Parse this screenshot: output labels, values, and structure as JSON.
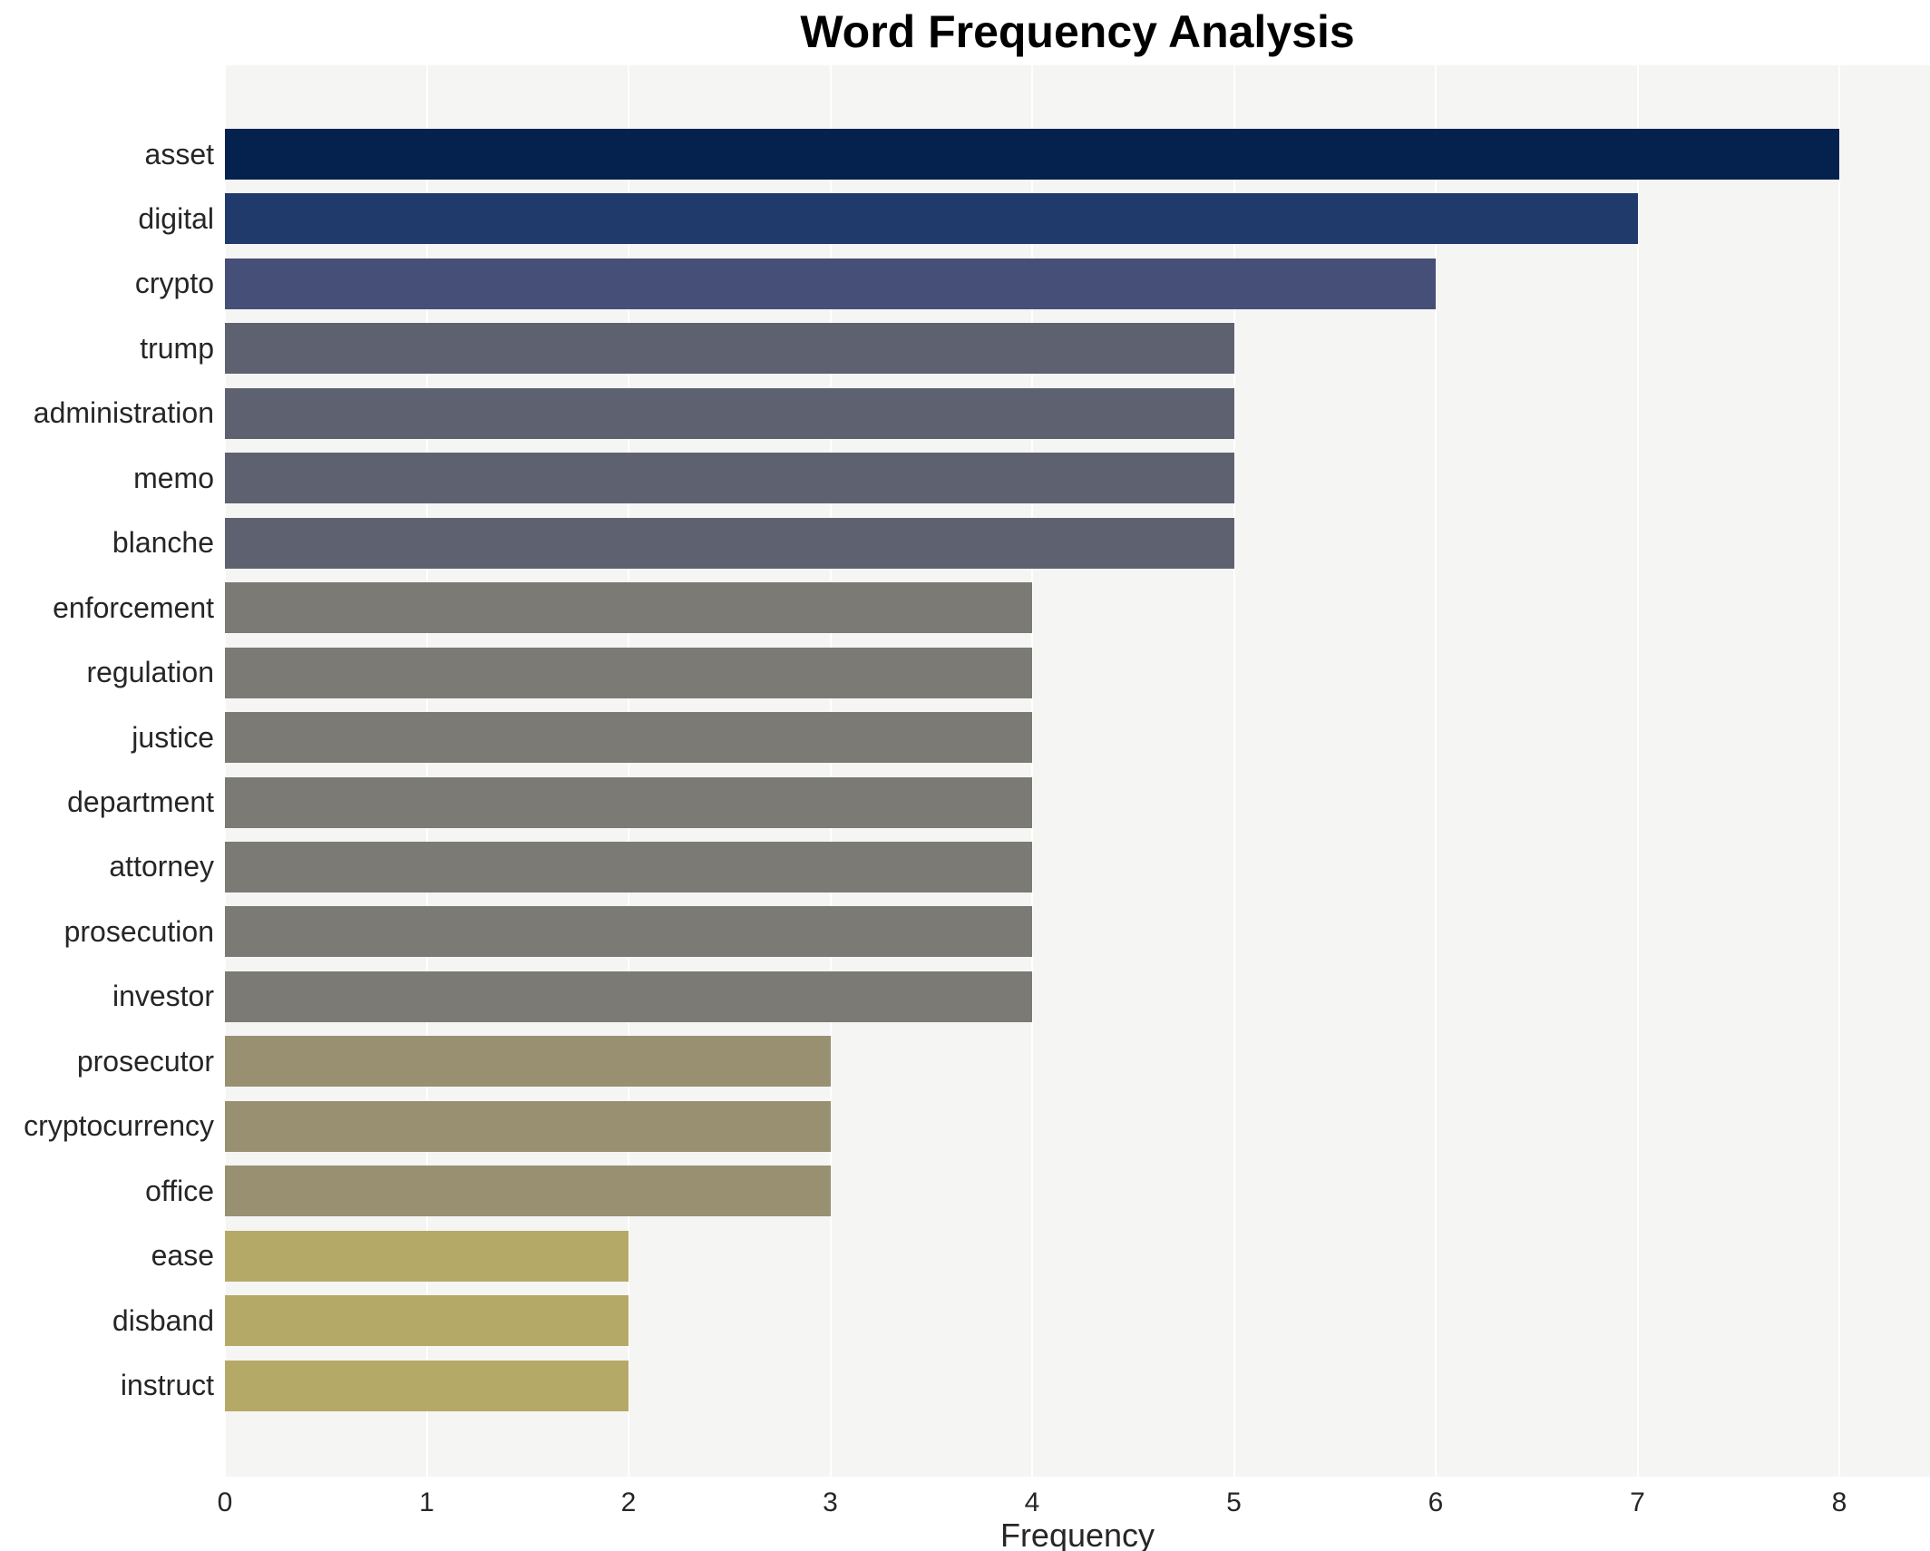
{
  "title": "Word Frequency Analysis",
  "chart_data": {
    "type": "bar",
    "orientation": "horizontal",
    "title": "Word Frequency Analysis",
    "xlabel": "Frequency",
    "ylabel": "",
    "xlim": [
      0,
      8.45
    ],
    "xticks": [
      0,
      1,
      2,
      3,
      4,
      5,
      6,
      7,
      8
    ],
    "grid": true,
    "legend": "none",
    "plot_background": "#f5f5f4",
    "gridline_color": "#ffffff",
    "categories": [
      "asset",
      "digital",
      "crypto",
      "trump",
      "administration",
      "memo",
      "blanche",
      "enforcement",
      "regulation",
      "justice",
      "department",
      "attorney",
      "prosecution",
      "investor",
      "prosecutor",
      "cryptocurrency",
      "office",
      "ease",
      "disband",
      "instruct"
    ],
    "values": [
      8,
      7,
      6,
      5,
      5,
      5,
      5,
      4,
      4,
      4,
      4,
      4,
      4,
      4,
      3,
      3,
      3,
      2,
      2,
      2
    ],
    "colors": [
      "#05224f",
      "#213a6c",
      "#454f77",
      "#5e6270",
      "#5e6270",
      "#5e6270",
      "#5e6270",
      "#7b7a74",
      "#7b7a74",
      "#7b7a74",
      "#7b7a74",
      "#7b7a74",
      "#7b7a74",
      "#7b7a74",
      "#989071",
      "#989071",
      "#989071",
      "#b5a967",
      "#b5a967",
      "#b5a967"
    ],
    "colormap": "cividis"
  }
}
